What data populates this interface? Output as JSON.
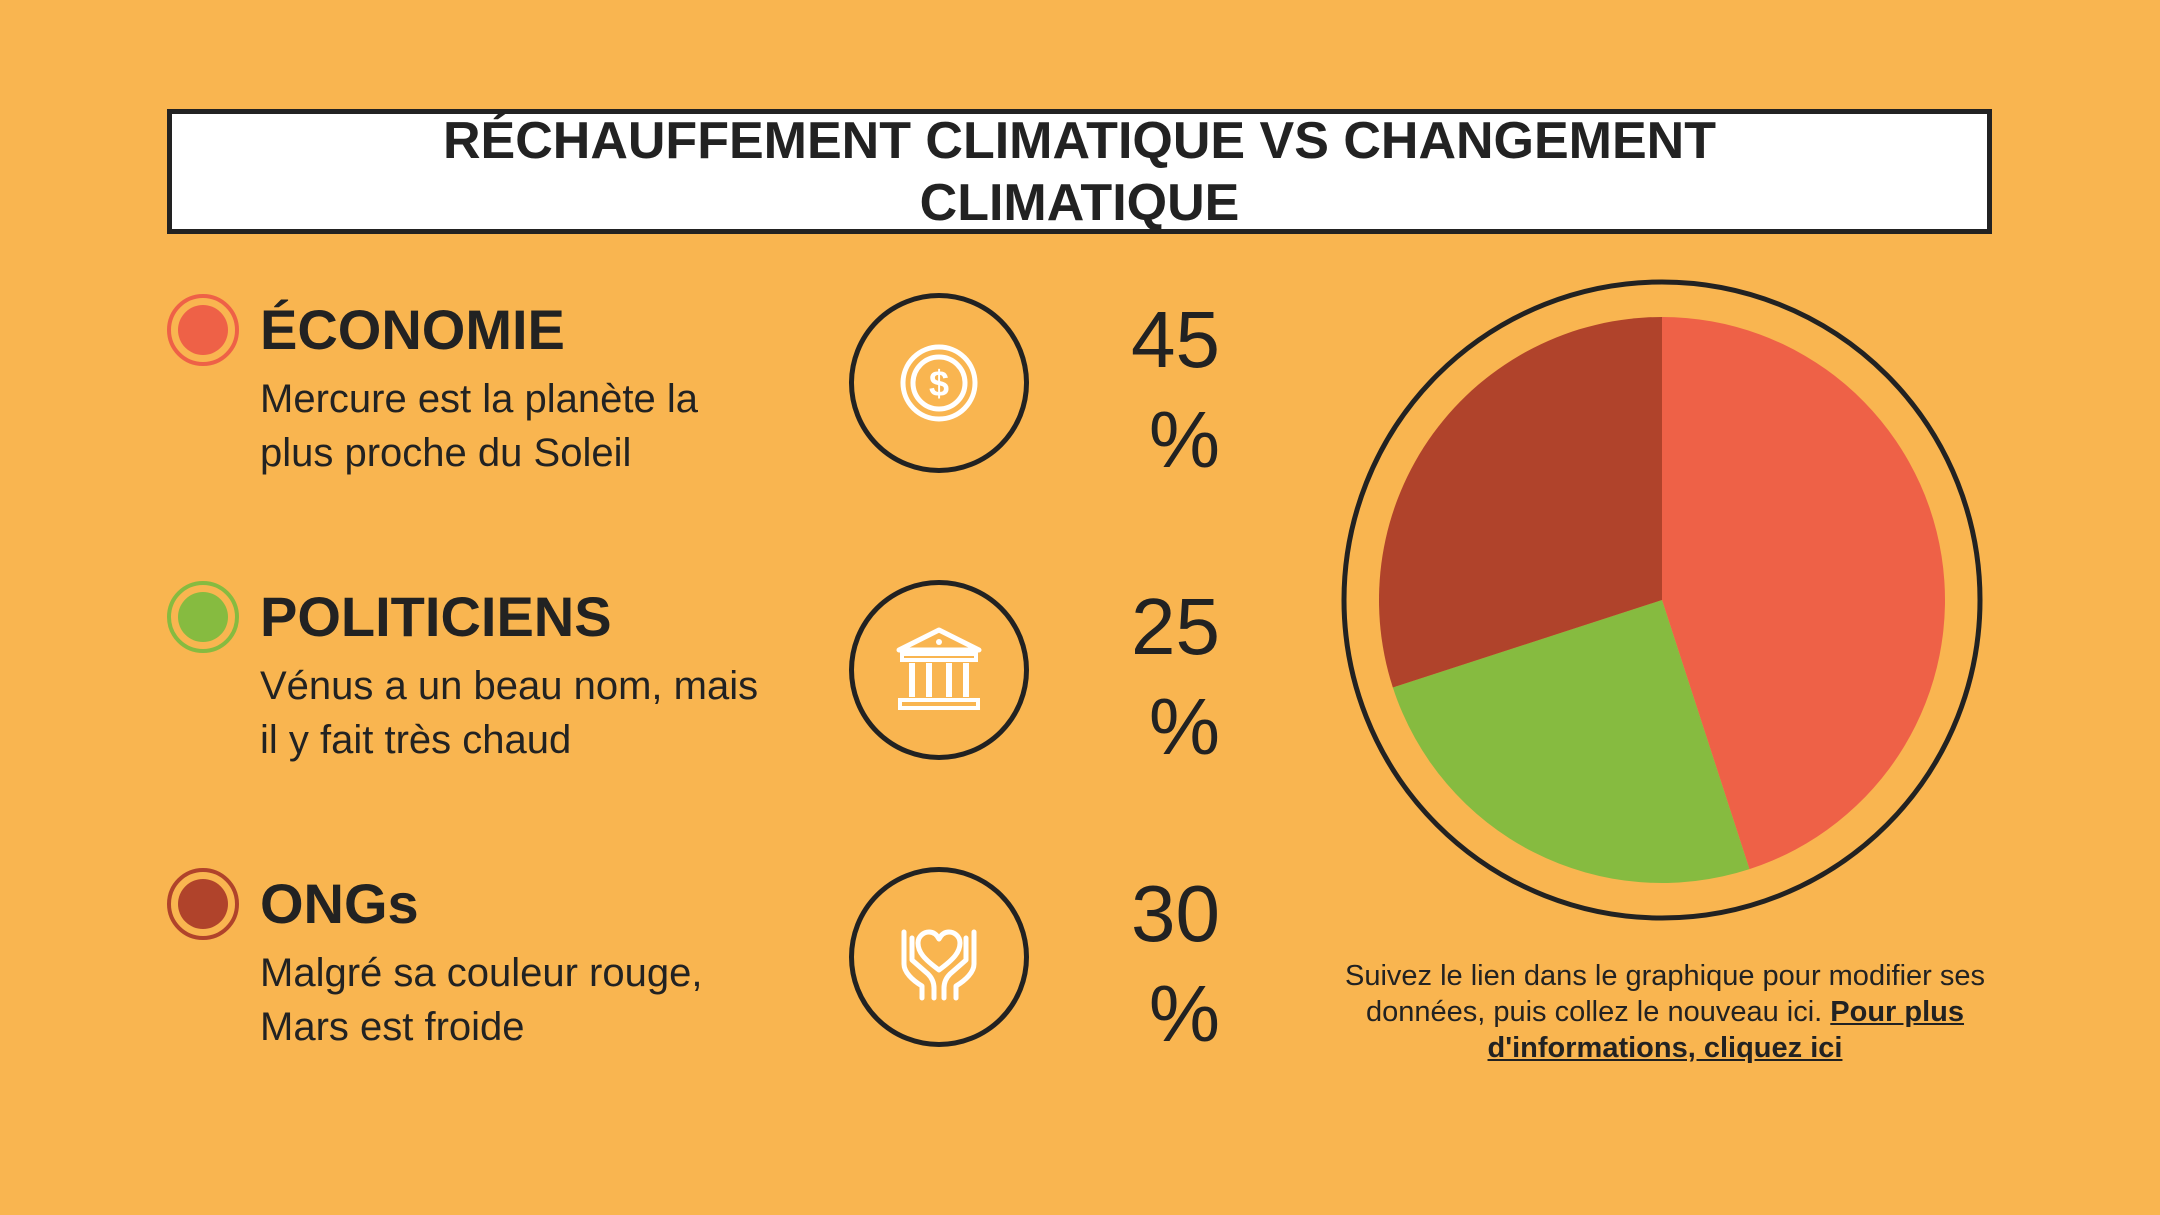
{
  "title": "RÉCHAUFFEMENT CLIMATIQUE VS CHANGEMENT CLIMATIQUE",
  "colors": {
    "background": "#f9b550",
    "economy": "#ee6147",
    "politicians": "#86bb40",
    "ngos": "#b0432b",
    "dark": "#222222"
  },
  "items": [
    {
      "title": "ÉCONOMIE",
      "description": "Mercure est la planète la plus proche du Soleil",
      "icon": "dollar-coin-icon",
      "value": "45",
      "unit": "%"
    },
    {
      "title": "POLITICIENS",
      "description": "Vénus a un beau nom, mais il y fait très chaud",
      "icon": "government-building-icon",
      "value": "25",
      "unit": "%"
    },
    {
      "title": "ONGs",
      "description": "Malgré sa couleur rouge, Mars est froide",
      "icon": "heart-hands-icon",
      "value": "30",
      "unit": "%"
    }
  ],
  "footnote": {
    "text": "Suivez le lien dans le graphique pour modifier ses données, puis collez le nouveau ici. ",
    "link": "Pour plus d'informations, cliquez ici"
  },
  "chart_data": {
    "type": "pie",
    "categories": [
      "ÉCONOMIE",
      "POLITICIENS",
      "ONGs"
    ],
    "values": [
      45,
      25,
      30
    ],
    "colors": [
      "#ee6147",
      "#86bb40",
      "#b0432b"
    ],
    "start": "12 o'clock",
    "direction": "clockwise"
  }
}
